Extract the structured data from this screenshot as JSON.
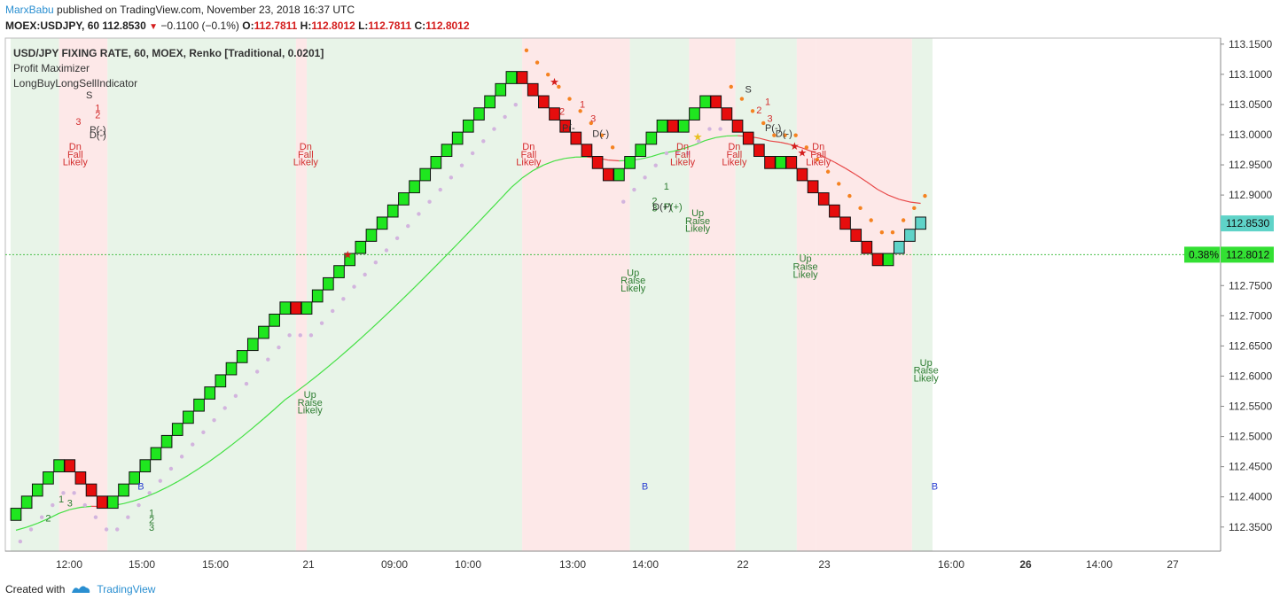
{
  "header": {
    "author": "MarxBabu",
    "published_text": "published on TradingView.com, November 23, 2018 16:37 UTC",
    "symbol": "MOEX:USDJPY, 60",
    "last": "112.8530",
    "change": "−0.1100 (−0.1%)",
    "o_label": "O:",
    "o": "112.7811",
    "h_label": "H:",
    "h": "112.8012",
    "l_label": "L:",
    "l": "112.7811",
    "c_label": "C:",
    "c": "112.8012"
  },
  "legend": {
    "title": "USD/JPY FIXING RATE, 60, MOEX, Renko [Traditional, 0.0201]",
    "indicator1": "Profit Maximizer",
    "indicator2": "LongBuyLongSellIndicator"
  },
  "footer": {
    "created_with": "Created with",
    "brand": "TradingView"
  },
  "colors": {
    "up_brick": "#1fe61f",
    "down_brick": "#e60d0d",
    "pending_brick": "#5fd3c8",
    "green_zone": "#e8f4e8",
    "red_zone": "#fde8e8",
    "ma_up": "#44e044",
    "ma_down": "#e84a4a",
    "dots_up": "#d2b4de",
    "dots_down": "#f58220",
    "price_line": "#4ac04a",
    "text_green": "#2e7d32",
    "text_red": "#d32f2f"
  },
  "chart_data": {
    "type": "renko",
    "y_ticks": [
      "113.1500",
      "113.1000",
      "113.0500",
      "113.0000",
      "112.9500",
      "112.9000",
      "112.8500",
      "112.8000",
      "112.7500",
      "112.7000",
      "112.6500",
      "112.6000",
      "112.5500",
      "112.5000",
      "112.4500",
      "112.4000",
      "112.3500"
    ],
    "ylim": [
      112.31,
      113.16
    ],
    "x_ticks": [
      "12:00",
      "15:00",
      "15:00",
      "21",
      "09:00",
      "10:00",
      "13:00",
      "14:00",
      "22",
      "23",
      "16:00",
      "26",
      "14:00",
      "27"
    ],
    "bold_x_ticks": [
      "26"
    ],
    "brick_size": 0.0201,
    "bricks_close": [
      112.3811,
      112.4012,
      112.4213,
      112.4414,
      112.4615,
      112.4414,
      112.4213,
      112.4012,
      112.3811,
      112.4012,
      112.4213,
      112.4414,
      112.4615,
      112.4816,
      112.5017,
      112.5218,
      112.5419,
      112.562,
      112.5821,
      112.6022,
      112.6223,
      112.6424,
      112.6625,
      112.6826,
      112.7027,
      112.7228,
      112.7027,
      112.7228,
      112.7429,
      112.763,
      112.7831,
      112.8032,
      112.8233,
      112.8434,
      112.8635,
      112.8836,
      112.9037,
      112.9238,
      112.9439,
      112.964,
      112.9841,
      113.0042,
      113.0243,
      113.0444,
      113.0645,
      113.0846,
      113.1047,
      113.0846,
      113.0645,
      113.0444,
      113.0243,
      113.0042,
      112.9841,
      112.964,
      112.9439,
      112.9238,
      112.9439,
      112.964,
      112.9841,
      113.0042,
      113.0243,
      113.0042,
      113.0243,
      113.0444,
      113.0645,
      113.0444,
      113.0243,
      113.0042,
      112.9841,
      112.964,
      112.9439,
      112.964,
      112.9439,
      112.9238,
      112.9037,
      112.8836,
      112.8635,
      112.8434,
      112.8233,
      112.8032,
      112.7831,
      112.8032,
      112.8233,
      112.8434,
      112.8635
    ],
    "pending_from_index": 82,
    "current_price": "112.8530",
    "last_close": "112.8012",
    "last_close_pct": "0.38%",
    "zones": [
      {
        "from": 0,
        "to": 4.5,
        "color": "green"
      },
      {
        "from": 4.5,
        "to": 9,
        "color": "red"
      },
      {
        "from": 9,
        "to": 26.5,
        "color": "green"
      },
      {
        "from": 26.5,
        "to": 27.5,
        "color": "red"
      },
      {
        "from": 27.5,
        "to": 47.5,
        "color": "green"
      },
      {
        "from": 47.5,
        "to": 57.5,
        "color": "red"
      },
      {
        "from": 57.5,
        "to": 63,
        "color": "green"
      },
      {
        "from": 63,
        "to": 67.3,
        "color": "red"
      },
      {
        "from": 67.3,
        "to": 73,
        "color": "green"
      },
      {
        "from": 73,
        "to": 74.8,
        "color": "red"
      },
      {
        "from": 74.8,
        "to": 83.7,
        "color": "red"
      },
      {
        "from": 83.7,
        "to": 85.6,
        "color": "green"
      }
    ],
    "annotations": [
      {
        "i": 5.5,
        "v": 112.975,
        "text": "Dn",
        "color": "red"
      },
      {
        "i": 5.5,
        "v": 112.962,
        "text": "Fall",
        "color": "red"
      },
      {
        "i": 5.5,
        "v": 112.949,
        "text": "Likely",
        "color": "red"
      },
      {
        "i": 26.9,
        "v": 112.975,
        "text": "Dn",
        "color": "red"
      },
      {
        "i": 26.9,
        "v": 112.962,
        "text": "Fall",
        "color": "red"
      },
      {
        "i": 26.9,
        "v": 112.949,
        "text": "Likely",
        "color": "red"
      },
      {
        "i": 47.6,
        "v": 112.975,
        "text": "Dn",
        "color": "red"
      },
      {
        "i": 47.6,
        "v": 112.962,
        "text": "Fall",
        "color": "red"
      },
      {
        "i": 47.6,
        "v": 112.949,
        "text": "Likely",
        "color": "red"
      },
      {
        "i": 61.9,
        "v": 112.975,
        "text": "Dn",
        "color": "red"
      },
      {
        "i": 61.9,
        "v": 112.962,
        "text": "Fall",
        "color": "red"
      },
      {
        "i": 61.9,
        "v": 112.949,
        "text": "Likely",
        "color": "red"
      },
      {
        "i": 66.7,
        "v": 112.975,
        "text": "Dn",
        "color": "red"
      },
      {
        "i": 66.7,
        "v": 112.962,
        "text": "Fall",
        "color": "red"
      },
      {
        "i": 66.7,
        "v": 112.949,
        "text": "Likely",
        "color": "red"
      },
      {
        "i": 74.5,
        "v": 112.975,
        "text": "Dn",
        "color": "red"
      },
      {
        "i": 74.5,
        "v": 112.962,
        "text": "Fall",
        "color": "red"
      },
      {
        "i": 74.5,
        "v": 112.949,
        "text": "Likely",
        "color": "red"
      },
      {
        "i": 27.3,
        "v": 112.564,
        "text": "Up",
        "color": "green"
      },
      {
        "i": 27.3,
        "v": 112.551,
        "text": "Raise",
        "color": "green"
      },
      {
        "i": 27.3,
        "v": 112.538,
        "text": "Likely",
        "color": "green"
      },
      {
        "i": 57.3,
        "v": 112.766,
        "text": "Up",
        "color": "green"
      },
      {
        "i": 57.3,
        "v": 112.753,
        "text": "Raise",
        "color": "green"
      },
      {
        "i": 57.3,
        "v": 112.74,
        "text": "Likely",
        "color": "green"
      },
      {
        "i": 63.3,
        "v": 112.865,
        "text": "Up",
        "color": "green"
      },
      {
        "i": 63.3,
        "v": 112.852,
        "text": "Raise",
        "color": "green"
      },
      {
        "i": 63.3,
        "v": 112.839,
        "text": "Likely",
        "color": "green"
      },
      {
        "i": 73.3,
        "v": 112.789,
        "text": "Up",
        "color": "green"
      },
      {
        "i": 73.3,
        "v": 112.776,
        "text": "Raise",
        "color": "green"
      },
      {
        "i": 73.3,
        "v": 112.763,
        "text": "Likely",
        "color": "green"
      },
      {
        "i": 84.5,
        "v": 112.617,
        "text": "Up",
        "color": "green"
      },
      {
        "i": 84.5,
        "v": 112.604,
        "text": "Raise",
        "color": "green"
      },
      {
        "i": 84.5,
        "v": 112.591,
        "text": "Likely",
        "color": "green"
      },
      {
        "i": 7.6,
        "v": 113.039,
        "text": "1",
        "color": "red"
      },
      {
        "i": 7.6,
        "v": 113.027,
        "text": "2",
        "color": "red"
      },
      {
        "i": 5.8,
        "v": 113.016,
        "text": "3",
        "color": "red"
      },
      {
        "i": 7.6,
        "v": 113.003,
        "text": "P(-)",
        "color": "dark"
      },
      {
        "i": 7.6,
        "v": 112.994,
        "text": "D(-)",
        "color": "dark"
      },
      {
        "i": 6.8,
        "v": 113.06,
        "text": "S",
        "color": "dark"
      },
      {
        "i": 68.0,
        "v": 113.07,
        "text": "S",
        "color": "dark"
      },
      {
        "i": 69.8,
        "v": 113.049,
        "text": "1",
        "color": "red"
      },
      {
        "i": 69.0,
        "v": 113.035,
        "text": "2",
        "color": "red"
      },
      {
        "i": 70.0,
        "v": 113.021,
        "text": "3",
        "color": "red"
      },
      {
        "i": 70.3,
        "v": 113.006,
        "text": "P(-)",
        "color": "dark"
      },
      {
        "i": 71.3,
        "v": 112.996,
        "text": "D(-)",
        "color": "dark"
      },
      {
        "i": 51.3,
        "v": 113.006,
        "text": "P(-",
        "color": "dark"
      },
      {
        "i": 53.6,
        "v": 113.021,
        "text": "3",
        "color": "red"
      },
      {
        "i": 52.6,
        "v": 113.045,
        "text": "1",
        "color": "red"
      },
      {
        "i": 50.7,
        "v": 113.033,
        "text": "2",
        "color": "red"
      },
      {
        "i": 54.3,
        "v": 112.996,
        "text": "D(-)",
        "color": "dark"
      },
      {
        "i": 60.4,
        "v": 112.909,
        "text": "1",
        "color": "green"
      },
      {
        "i": 59.3,
        "v": 112.885,
        "text": "2",
        "color": "green"
      },
      {
        "i": 59.3,
        "v": 112.873,
        "text": "3",
        "color": "green"
      },
      {
        "i": 61.0,
        "v": 112.875,
        "text": "P(+)",
        "color": "green"
      },
      {
        "i": 60.0,
        "v": 112.875,
        "text": "D(+)",
        "color": "dark"
      },
      {
        "i": 12.6,
        "v": 112.368,
        "text": "1",
        "color": "green"
      },
      {
        "i": 12.6,
        "v": 112.356,
        "text": "2",
        "color": "green"
      },
      {
        "i": 12.6,
        "v": 112.344,
        "text": "3",
        "color": "green"
      },
      {
        "i": 4.2,
        "v": 112.391,
        "text": "1",
        "color": "green"
      },
      {
        "i": 3.0,
        "v": 112.359,
        "text": "2",
        "color": "green"
      },
      {
        "i": 5.0,
        "v": 112.384,
        "text": "3",
        "color": "green"
      },
      {
        "i": 11.6,
        "v": 112.412,
        "text": "B",
        "color": "blue"
      },
      {
        "i": 58.4,
        "v": 112.412,
        "text": "B",
        "color": "blue"
      },
      {
        "i": 85.3,
        "v": 112.412,
        "text": "B",
        "color": "blue"
      }
    ],
    "stars": [
      {
        "i": 30.8,
        "v": 112.801,
        "color": "red"
      },
      {
        "i": 50.0,
        "v": 113.087,
        "color": "red"
      },
      {
        "i": 72.3,
        "v": 112.981,
        "color": "red"
      },
      {
        "i": 73.0,
        "v": 112.97,
        "color": "red"
      },
      {
        "i": 63.3,
        "v": 112.996,
        "color": "yellow"
      }
    ]
  }
}
